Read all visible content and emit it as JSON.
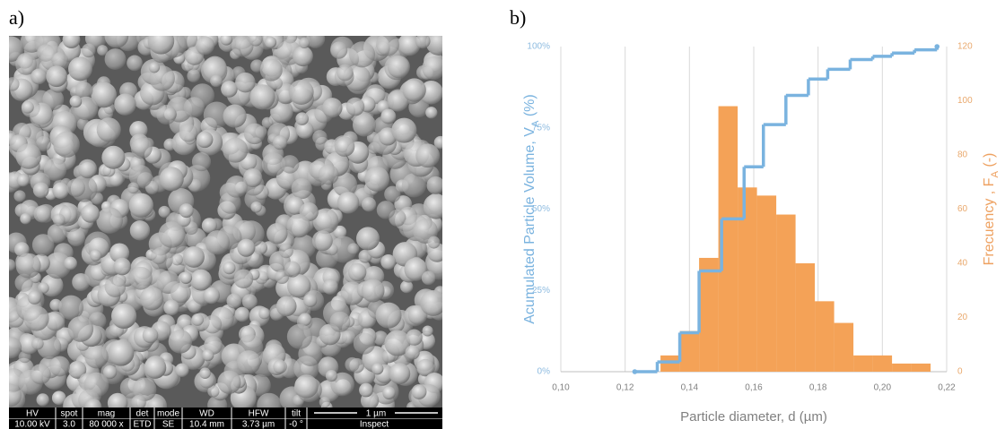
{
  "panels": {
    "a": "a)",
    "b": "b)"
  },
  "sem_image": {
    "headers": [
      "HV",
      "spot",
      "mag",
      "det",
      "mode",
      "WD",
      "HFW",
      "tilt"
    ],
    "values": [
      "10.00 kV",
      "3.0",
      "80 000 x",
      "ETD",
      "SE",
      "10.4 mm",
      "3.73 µm",
      "-0 °"
    ],
    "scale_label": "1 µm",
    "footer": "Inspect"
  },
  "chart_data": {
    "type": "histogram",
    "xlabel": "Particle diameter, d (µm)",
    "ylabel": {
      "text": "Acumulated  Particle Volume, V",
      "sub": "A",
      "suffix": " (%)"
    },
    "y2label": {
      "text": "Frecuency , F",
      "sub": "A",
      "suffix": " (-)"
    },
    "xlim": [
      0.1,
      0.22
    ],
    "xticks": [
      {
        "value": 0.1,
        "label": "0,10"
      },
      {
        "value": 0.12,
        "label": "0,12"
      },
      {
        "value": 0.14,
        "label": "0,14"
      },
      {
        "value": 0.16,
        "label": "0,16"
      },
      {
        "value": 0.18,
        "label": "0,18"
      },
      {
        "value": 0.2,
        "label": "0,20"
      },
      {
        "value": 0.22,
        "label": "0,22"
      }
    ],
    "ylim": [
      0,
      100
    ],
    "yticks": [
      {
        "value": 0,
        "label": "0%"
      },
      {
        "value": 25,
        "label": "25%"
      },
      {
        "value": 50,
        "label": "50%"
      },
      {
        "value": 75,
        "label": "75%"
      },
      {
        "value": 100,
        "label": "100%"
      }
    ],
    "y2lim": [
      0,
      120
    ],
    "y2ticks": [
      0,
      20,
      40,
      60,
      80,
      100,
      120
    ],
    "grid": "x",
    "histogram": {
      "axis": "y2",
      "color": "#f4a257",
      "bins": [
        0.131,
        0.137,
        0.143,
        0.149,
        0.155,
        0.161,
        0.167,
        0.173,
        0.179,
        0.185,
        0.191,
        0.197,
        0.203,
        0.209,
        0.215
      ],
      "values": [
        6,
        15,
        42,
        98,
        68,
        65,
        58,
        40,
        26,
        18,
        6,
        6,
        3,
        3
      ]
    },
    "cumulative": {
      "color": "#7ab3df",
      "x": [
        0.123,
        0.13,
        0.137,
        0.143,
        0.15,
        0.157,
        0.163,
        0.17,
        0.177,
        0.183,
        0.19,
        0.197,
        0.203,
        0.21,
        0.217
      ],
      "values": [
        0,
        3,
        12,
        31,
        47,
        63,
        76,
        85,
        90,
        93,
        96,
        97,
        98,
        99,
        100
      ]
    }
  }
}
